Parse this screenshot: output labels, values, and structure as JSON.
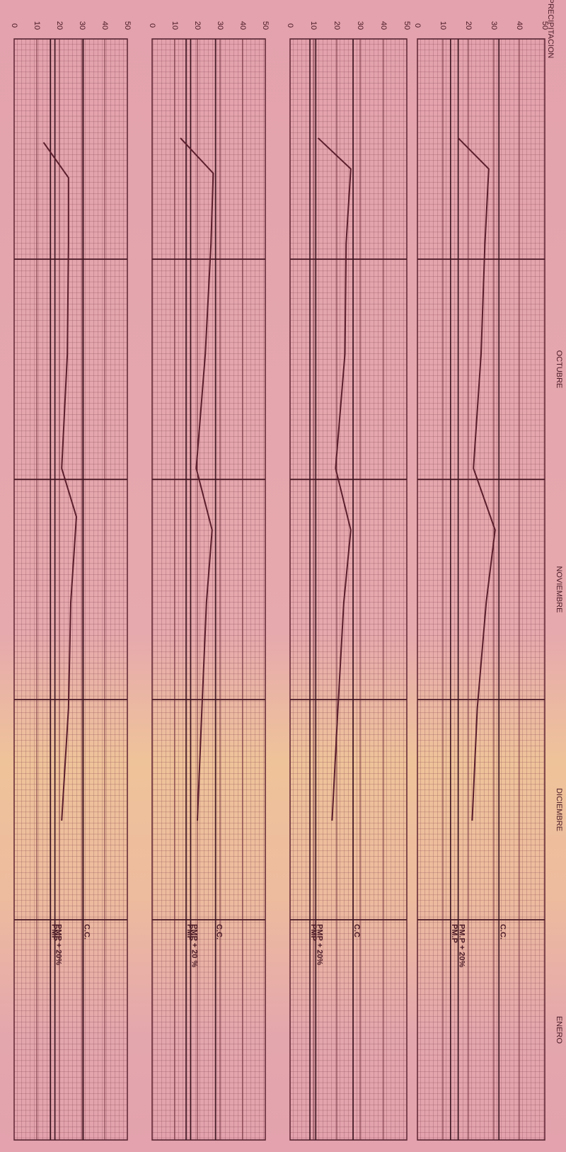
{
  "title": "PRECIPITACION",
  "time_axis": {
    "xlim": [
      0,
      50
    ],
    "dividers": [
      10,
      20,
      30,
      40
    ],
    "labels": [
      {
        "value": 15,
        "label": "OCTUBRE"
      },
      {
        "value": 25,
        "label": "NOVIEMBRE"
      },
      {
        "value": 35,
        "label": "DICIEMBRE"
      },
      {
        "value": 45,
        "label": "ENERO"
      }
    ]
  },
  "chart_data": [
    {
      "type": "line",
      "color": "#5a1e2c",
      "ylim": [
        0,
        50
      ],
      "yticks": [
        0,
        10,
        20,
        30,
        40,
        50
      ],
      "x": [
        4.5,
        5.9,
        9.3,
        14.3,
        19.5,
        22.3,
        25.6,
        30.4,
        35.5
      ],
      "values": [
        16,
        28,
        26.5,
        25,
        22,
        30.5,
        27,
        23.5,
        21.5
      ],
      "reference_lines": [
        {
          "label": "C.C.",
          "value": 32
        },
        {
          "label": "PM.P + 20%",
          "value": 16
        },
        {
          "label": "PM.P",
          "value": 13
        }
      ]
    },
    {
      "type": "line",
      "color": "#5a1e2c",
      "ylim": [
        0,
        50
      ],
      "yticks": [
        0,
        10,
        20,
        30,
        40,
        50
      ],
      "x": [
        4.5,
        5.9,
        9.3,
        14.3,
        19.5,
        22.3,
        25.6,
        30.4,
        35.5
      ],
      "values": [
        12,
        26,
        24,
        23.5,
        19.5,
        26,
        23,
        20.5,
        18
      ],
      "reference_lines": [
        {
          "label": "C.C",
          "value": 27
        },
        {
          "label": "PMP + 20%",
          "value": 11
        },
        {
          "label": "PMP",
          "value": 8.5
        }
      ]
    },
    {
      "type": "line",
      "color": "#5a1e2c",
      "ylim": [
        0,
        50
      ],
      "yticks": [
        0,
        10,
        20,
        30,
        40,
        50
      ],
      "x": [
        4.5,
        6.1,
        9.3,
        14.3,
        19.5,
        22.3,
        25.6,
        30.4,
        35.5
      ],
      "values": [
        12.5,
        27,
        26,
        23.5,
        19.5,
        26.5,
        24,
        22,
        20
      ],
      "reference_lines": [
        {
          "label": "C.C.",
          "value": 28
        },
        {
          "label": "PMP + 20 %",
          "value": 17
        },
        {
          "label": "PMP",
          "value": 15
        }
      ]
    },
    {
      "type": "line",
      "color": "#5a1e2c",
      "ylim": [
        0,
        50
      ],
      "yticks": [
        0,
        10,
        20,
        30,
        40,
        50
      ],
      "x": [
        4.7,
        6.3,
        9.3,
        14.3,
        19.5,
        21.7,
        25.6,
        30.4,
        35.5
      ],
      "values": [
        13,
        24,
        24,
        23.5,
        21,
        27.5,
        25,
        24,
        21
      ],
      "reference_lines": [
        {
          "label": "C.C.",
          "value": 30.5
        },
        {
          "label": "PMP + 20%",
          "value": 18
        },
        {
          "label": "PMP",
          "value": 16
        }
      ]
    }
  ]
}
